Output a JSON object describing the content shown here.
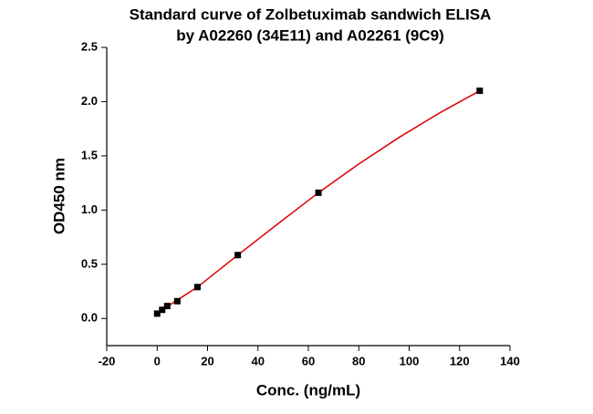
{
  "chart_data": {
    "type": "scatter",
    "title": [
      "Standard curve of Zolbetuximab sandwich ELISA",
      "by A02260 (34E11) and A02261 (9C9)"
    ],
    "x_label": "Conc. (ng/mL)",
    "y_label": "OD450 nm",
    "x": [
      0,
      2,
      4,
      8,
      16,
      32,
      64,
      128
    ],
    "values": [
      0.045,
      0.08,
      0.115,
      0.16,
      0.29,
      0.585,
      1.16,
      2.1
    ],
    "color": "#000000",
    "fit": {
      "color": "#e00000",
      "x": [
        0,
        4,
        8,
        16,
        32,
        48,
        64,
        80,
        96,
        112,
        128
      ],
      "values": [
        0.045,
        0.11,
        0.17,
        0.29,
        0.585,
        0.875,
        1.16,
        1.425,
        1.67,
        1.895,
        2.1
      ]
    },
    "xlim": [
      -20,
      140
    ],
    "xticks": [
      -20,
      0,
      20,
      40,
      60,
      80,
      100,
      120,
      140
    ],
    "ylim": [
      -0.25,
      2.5
    ],
    "yticks": [
      {
        "value": 0,
        "label": "0.0"
      },
      {
        "value": 0.5,
        "label": "0.5"
      },
      {
        "value": 1,
        "label": "1.0"
      },
      {
        "value": 1.5,
        "label": "1.5"
      },
      {
        "value": 2,
        "label": "2.0"
      },
      {
        "value": 2.5,
        "label": "2.5"
      }
    ],
    "grid": false
  }
}
